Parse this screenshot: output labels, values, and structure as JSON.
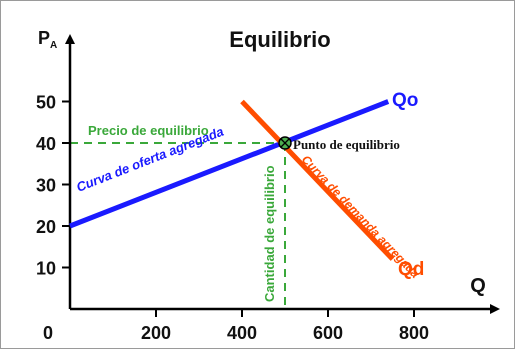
{
  "chart_data": {
    "type": "line",
    "title": "Equilibrio",
    "ylabel": "P",
    "ylabel_sub": "A",
    "xlabel": "Q",
    "xlim": [
      0,
      950
    ],
    "ylim": [
      0,
      60
    ],
    "x_ticks": [
      {
        "value": 0,
        "label": "0"
      },
      {
        "value": 200,
        "label": "200"
      },
      {
        "value": 400,
        "label": "400"
      },
      {
        "value": 600,
        "label": "600"
      },
      {
        "value": 800,
        "label": "800"
      }
    ],
    "y_ticks": [
      {
        "value": 10,
        "label": "10"
      },
      {
        "value": 20,
        "label": "20"
      },
      {
        "value": 30,
        "label": "30"
      },
      {
        "value": 40,
        "label": "40"
      },
      {
        "value": 50,
        "label": "50"
      }
    ],
    "series": [
      {
        "name": "Qo",
        "label": "Curva de oferta agregada",
        "color": "#1a1aff",
        "points": [
          {
            "x": 0,
            "y": 20
          },
          {
            "x": 740,
            "y": 50
          }
        ]
      },
      {
        "name": "Qd",
        "label": "Curva de demanda agregada",
        "color": "#ff4d00",
        "points": [
          {
            "x": 400,
            "y": 50
          },
          {
            "x": 750,
            "y": 12
          }
        ]
      }
    ],
    "equilibrium": {
      "x": 500,
      "y": 40,
      "label": "Punto de equilibrio",
      "price_label": "Precio de equilibrio",
      "quantity_label": "Cantidad de equilibrio",
      "guide_color": "#3aa83a"
    }
  }
}
